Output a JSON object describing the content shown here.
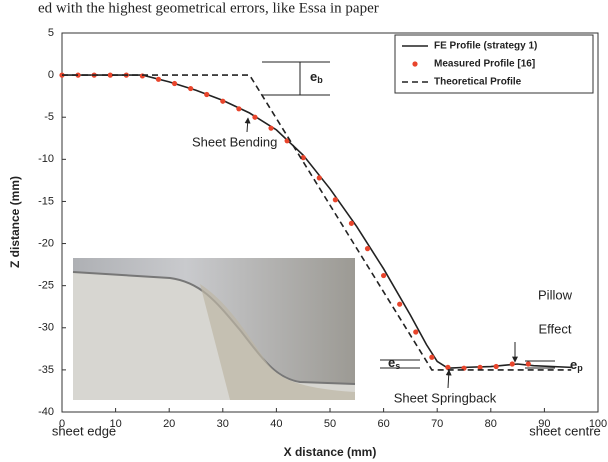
{
  "caption": "ed with the highest geometrical errors, like Essa in paper",
  "chart_data": {
    "type": "line",
    "xlabel": "X distance (mm)",
    "ylabel": "Z distance (mm)",
    "xlim": [
      0,
      100
    ],
    "ylim": [
      -40,
      5
    ],
    "xticks": [
      0,
      10,
      20,
      30,
      40,
      50,
      60,
      70,
      80,
      90,
      100
    ],
    "yticks": [
      5,
      0,
      -5,
      -10,
      -15,
      -20,
      -25,
      -30,
      -35,
      -40
    ],
    "legend": "top-right",
    "series": [
      {
        "name": "FE Profile (strategy 1)",
        "color": "#222222",
        "style": "solid",
        "x": [
          0,
          15,
          20,
          25,
          30,
          35,
          40,
          45,
          50,
          55,
          60,
          65,
          68,
          70,
          72,
          75,
          80,
          85,
          88,
          95
        ],
        "values": [
          0,
          0,
          -0.8,
          -1.8,
          -3,
          -4.5,
          -6.5,
          -9.5,
          -13.5,
          -18,
          -23,
          -28.5,
          -32,
          -34,
          -34.8,
          -34.7,
          -34.6,
          -34.3,
          -34.5,
          -34.7
        ]
      },
      {
        "name": "Measured Profile [16]",
        "color": "#e8452c",
        "style": "markers",
        "x": [
          0,
          3,
          6,
          9,
          12,
          15,
          18,
          21,
          24,
          27,
          30,
          33,
          36,
          39,
          42,
          45,
          48,
          51,
          54,
          57,
          60,
          63,
          66,
          69,
          72,
          75,
          78,
          81,
          84,
          87
        ],
        "values": [
          0,
          0,
          0,
          0,
          0,
          -0.1,
          -0.5,
          -1,
          -1.6,
          -2.3,
          -3.1,
          -4,
          -5,
          -6.3,
          -7.8,
          -9.8,
          -12.2,
          -14.8,
          -17.6,
          -20.6,
          -23.8,
          -27.2,
          -30.5,
          -33.5,
          -34.7,
          -34.8,
          -34.7,
          -34.6,
          -34.3,
          -34.3
        ]
      },
      {
        "name": "Theoretical Profile",
        "color": "#222222",
        "style": "dashed",
        "x": [
          0,
          35,
          69,
          95
        ],
        "values": [
          0,
          0,
          -35,
          -35
        ]
      }
    ],
    "annotations": [
      "Sheet Bending",
      "Sheet Springback",
      "Pillow",
      "Effect",
      "sheet edge",
      "sheet centre"
    ],
    "errors": [
      {
        "base": "e",
        "sub": "b"
      },
      {
        "base": "e",
        "sub": "s"
      },
      {
        "base": "e",
        "sub": "p"
      }
    ]
  }
}
